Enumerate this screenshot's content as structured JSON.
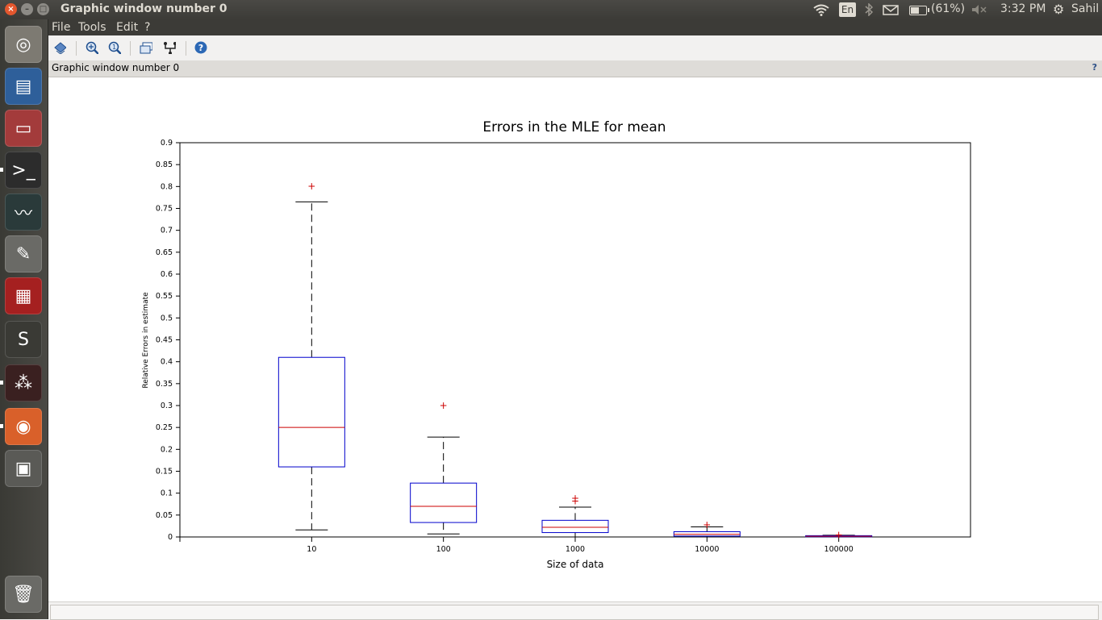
{
  "window": {
    "title": "Graphic window number 0",
    "close_glyph": "×",
    "min_glyph": "–",
    "max_glyph": "□"
  },
  "tray": {
    "wifi_icon": "wifi-icon",
    "lang": "En",
    "bluetooth_icon": "bluetooth-icon",
    "mail_icon": "mail-icon",
    "battery": "(61%)",
    "battery_level": 0.61,
    "volume_icon": "volume-muted-icon",
    "time": "3:32 PM",
    "user": "Sahil"
  },
  "launcher": {
    "items": [
      {
        "name": "ubuntu-dash-icon",
        "glyph": "◎",
        "color": "#7d7a72"
      },
      {
        "name": "document-viewer-icon",
        "glyph": "▤",
        "color": "#2e5f9a"
      },
      {
        "name": "file-cabinet-icon",
        "glyph": "▭",
        "color": "#a33b3b"
      },
      {
        "name": "terminal-icon",
        "glyph": ">_",
        "color": "#2c2c2c"
      },
      {
        "name": "system-monitor-icon",
        "glyph": "〰",
        "color": "#2a3a3a"
      },
      {
        "name": "settings-tools-icon",
        "glyph": "✎",
        "color": "#6a6a66"
      },
      {
        "name": "app-grid-icon",
        "glyph": "▦",
        "color": "#a52020"
      },
      {
        "name": "sublime-text-icon",
        "glyph": "S",
        "color": "#3a3a35"
      },
      {
        "name": "scilab-icon",
        "glyph": "⁂",
        "color": "#3a2020"
      },
      {
        "name": "firefox-icon",
        "glyph": "◉",
        "color": "#d9602a"
      },
      {
        "name": "workspace-switcher-icon",
        "glyph": "▣",
        "color": "#5a5a56"
      },
      {
        "name": "trash-icon",
        "glyph": "🗑",
        "color": "#6a6a66"
      }
    ]
  },
  "menubar": {
    "file": "File",
    "tools": "Tools",
    "edit": "Edit",
    "help": "?"
  },
  "toolbar": {
    "buttons": [
      {
        "name": "rotate-icon",
        "glyph": "⬗"
      },
      {
        "name": "zoom-in-icon",
        "glyph": "⊕"
      },
      {
        "name": "zoom-reset-icon",
        "glyph": "⊙"
      },
      {
        "name": "datatip-icon",
        "glyph": "▭"
      },
      {
        "name": "data-editor-icon",
        "glyph": "⌥"
      },
      {
        "name": "help-icon",
        "glyph": "?"
      }
    ]
  },
  "figure_strip": {
    "title": "Graphic window number 0",
    "help": "?"
  },
  "chart_data": {
    "type": "boxplot",
    "title": "Errors in the MLE for mean",
    "xlabel": "Size of data",
    "ylabel": "Relative Errors in estimate",
    "categories": [
      "10",
      "100",
      "1000",
      "10000",
      "100000"
    ],
    "ylim": [
      0,
      0.9
    ],
    "yticks": [
      "0",
      "0.05",
      "0.1",
      "0.15",
      "0.2",
      "0.25",
      "0.3",
      "0.35",
      "0.4",
      "0.45",
      "0.5",
      "0.55",
      "0.6",
      "0.65",
      "0.7",
      "0.75",
      "0.8",
      "0.85",
      "0.9"
    ],
    "boxes": [
      {
        "category": "10",
        "whisker_low": 0.016,
        "q1": 0.16,
        "median": 0.25,
        "q3": 0.41,
        "whisker_high": 0.765,
        "outliers": [
          0.801
        ]
      },
      {
        "category": "100",
        "whisker_low": 0.007,
        "q1": 0.033,
        "median": 0.07,
        "q3": 0.123,
        "whisker_high": 0.228,
        "outliers": [
          0.3
        ]
      },
      {
        "category": "1000",
        "whisker_low": 0.0,
        "q1": 0.01,
        "median": 0.022,
        "q3": 0.038,
        "whisker_high": 0.068,
        "outliers": [
          0.082,
          0.088
        ]
      },
      {
        "category": "10000",
        "whisker_low": 0.0,
        "q1": 0.002,
        "median": 0.006,
        "q3": 0.012,
        "whisker_high": 0.023,
        "outliers": [
          0.028
        ]
      },
      {
        "category": "100000",
        "whisker_low": 0.0,
        "q1": 0.0005,
        "median": 0.0015,
        "q3": 0.003,
        "whisker_high": 0.004,
        "outliers": [
          0.005
        ]
      }
    ],
    "colors": {
      "box": "#0000cc",
      "median": "#cc0000",
      "whisker": "#000000",
      "outlier": "#cc0000"
    },
    "grid": false
  }
}
